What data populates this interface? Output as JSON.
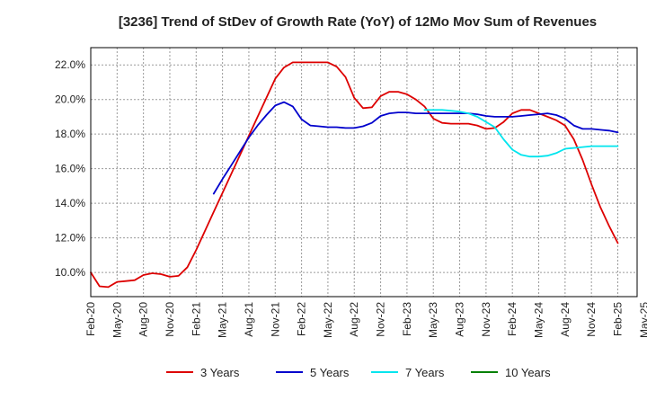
{
  "chart_data": {
    "type": "line",
    "title": "[3236]  Trend of StDev of Growth Rate (YoY) of 12Mo Mov Sum of Revenues",
    "xlabel": "",
    "ylabel": "",
    "x_range": [
      0,
      60
    ],
    "ylim": [
      8.6,
      23.0
    ],
    "grid": true,
    "legend_position": "bottom",
    "x_ticks": [
      {
        "x": 0,
        "label": "Feb-20"
      },
      {
        "x": 3,
        "label": "May-20"
      },
      {
        "x": 6,
        "label": "Aug-20"
      },
      {
        "x": 9,
        "label": "Nov-20"
      },
      {
        "x": 12,
        "label": "Feb-21"
      },
      {
        "x": 15,
        "label": "May-21"
      },
      {
        "x": 18,
        "label": "Aug-21"
      },
      {
        "x": 21,
        "label": "Nov-21"
      },
      {
        "x": 24,
        "label": "Feb-22"
      },
      {
        "x": 27,
        "label": "May-22"
      },
      {
        "x": 30,
        "label": "Aug-22"
      },
      {
        "x": 33,
        "label": "Nov-22"
      },
      {
        "x": 36,
        "label": "Feb-23"
      },
      {
        "x": 39,
        "label": "May-23"
      },
      {
        "x": 42,
        "label": "Aug-23"
      },
      {
        "x": 45,
        "label": "Nov-23"
      },
      {
        "x": 48,
        "label": "Feb-24"
      },
      {
        "x": 51,
        "label": "May-24"
      },
      {
        "x": 54,
        "label": "Aug-24"
      },
      {
        "x": 57,
        "label": "Nov-24"
      },
      {
        "x": 60,
        "label": "Feb-25"
      },
      {
        "x": 63,
        "label": "May-25"
      }
    ],
    "y_ticks": [
      {
        "value": 10,
        "label": "10.0%"
      },
      {
        "value": 12,
        "label": "12.0%"
      },
      {
        "value": 14,
        "label": "14.0%"
      },
      {
        "value": 16,
        "label": "16.0%"
      },
      {
        "value": 18,
        "label": "18.0%"
      },
      {
        "value": 20,
        "label": "20.0%"
      },
      {
        "value": 22,
        "label": "22.0%"
      }
    ],
    "series": [
      {
        "name": "3 Years",
        "color": "#dd0000",
        "points": [
          [
            0,
            10.0
          ],
          [
            1,
            9.2
          ],
          [
            2,
            9.15
          ],
          [
            3,
            9.45
          ],
          [
            4,
            9.5
          ],
          [
            5,
            9.55
          ],
          [
            6,
            9.85
          ],
          [
            7,
            9.95
          ],
          [
            8,
            9.9
          ],
          [
            9,
            9.75
          ],
          [
            10,
            9.8
          ],
          [
            11,
            10.3
          ],
          [
            12,
            11.3
          ],
          [
            13,
            12.4
          ],
          [
            14,
            13.5
          ],
          [
            15,
            14.6
          ],
          [
            16,
            15.7
          ],
          [
            17,
            16.8
          ],
          [
            18,
            17.9
          ],
          [
            19,
            19.0
          ],
          [
            20,
            20.1
          ],
          [
            21,
            21.2
          ],
          [
            22,
            21.85
          ],
          [
            23,
            22.15
          ],
          [
            24,
            22.15
          ],
          [
            25,
            22.15
          ],
          [
            26,
            22.15
          ],
          [
            27,
            22.15
          ],
          [
            28,
            21.9
          ],
          [
            29,
            21.3
          ],
          [
            30,
            20.1
          ],
          [
            31,
            19.5
          ],
          [
            32,
            19.55
          ],
          [
            33,
            20.2
          ],
          [
            34,
            20.45
          ],
          [
            35,
            20.45
          ],
          [
            36,
            20.3
          ],
          [
            37,
            20.0
          ],
          [
            38,
            19.6
          ],
          [
            39,
            18.9
          ],
          [
            40,
            18.65
          ],
          [
            41,
            18.6
          ],
          [
            42,
            18.6
          ],
          [
            43,
            18.6
          ],
          [
            44,
            18.5
          ],
          [
            45,
            18.3
          ],
          [
            46,
            18.35
          ],
          [
            47,
            18.7
          ],
          [
            48,
            19.2
          ],
          [
            49,
            19.4
          ],
          [
            50,
            19.4
          ],
          [
            51,
            19.2
          ],
          [
            52,
            19.0
          ],
          [
            53,
            18.8
          ],
          [
            54,
            18.5
          ],
          [
            55,
            17.7
          ],
          [
            56,
            16.5
          ],
          [
            57,
            15.1
          ],
          [
            58,
            13.8
          ],
          [
            59,
            12.7
          ],
          [
            60,
            11.7
          ]
        ]
      },
      {
        "name": "5 Years",
        "color": "#0000cc",
        "points": [
          [
            14,
            14.55
          ],
          [
            15,
            15.4
          ],
          [
            16,
            16.2
          ],
          [
            17,
            17.0
          ],
          [
            18,
            17.8
          ],
          [
            19,
            18.5
          ],
          [
            20,
            19.1
          ],
          [
            21,
            19.65
          ],
          [
            22,
            19.85
          ],
          [
            23,
            19.6
          ],
          [
            24,
            18.85
          ],
          [
            25,
            18.5
          ],
          [
            26,
            18.45
          ],
          [
            27,
            18.4
          ],
          [
            28,
            18.4
          ],
          [
            29,
            18.35
          ],
          [
            30,
            18.35
          ],
          [
            31,
            18.45
          ],
          [
            32,
            18.65
          ],
          [
            33,
            19.05
          ],
          [
            34,
            19.2
          ],
          [
            35,
            19.25
          ],
          [
            36,
            19.25
          ],
          [
            37,
            19.2
          ],
          [
            38,
            19.2
          ],
          [
            39,
            19.2
          ],
          [
            40,
            19.2
          ],
          [
            41,
            19.2
          ],
          [
            42,
            19.2
          ],
          [
            43,
            19.2
          ],
          [
            44,
            19.15
          ],
          [
            45,
            19.05
          ],
          [
            46,
            19.0
          ],
          [
            47,
            19.0
          ],
          [
            48,
            19.0
          ],
          [
            49,
            19.05
          ],
          [
            50,
            19.1
          ],
          [
            51,
            19.15
          ],
          [
            52,
            19.2
          ],
          [
            53,
            19.1
          ],
          [
            54,
            18.9
          ],
          [
            55,
            18.5
          ],
          [
            56,
            18.3
          ],
          [
            57,
            18.3
          ],
          [
            58,
            18.25
          ],
          [
            59,
            18.2
          ],
          [
            60,
            18.1
          ]
        ]
      },
      {
        "name": "7 Years",
        "color": "#00e5ee",
        "points": [
          [
            38,
            19.4
          ],
          [
            39,
            19.4
          ],
          [
            40,
            19.4
          ],
          [
            41,
            19.35
          ],
          [
            42,
            19.3
          ],
          [
            43,
            19.2
          ],
          [
            44,
            19.0
          ],
          [
            45,
            18.7
          ],
          [
            46,
            18.4
          ],
          [
            47,
            17.7
          ],
          [
            48,
            17.1
          ],
          [
            49,
            16.8
          ],
          [
            50,
            16.7
          ],
          [
            51,
            16.7
          ],
          [
            52,
            16.75
          ],
          [
            53,
            16.9
          ],
          [
            54,
            17.15
          ],
          [
            55,
            17.2
          ],
          [
            56,
            17.25
          ],
          [
            57,
            17.3
          ],
          [
            58,
            17.3
          ],
          [
            59,
            17.3
          ],
          [
            60,
            17.3
          ]
        ]
      },
      {
        "name": "10 Years",
        "color": "#008000",
        "points": []
      }
    ]
  }
}
